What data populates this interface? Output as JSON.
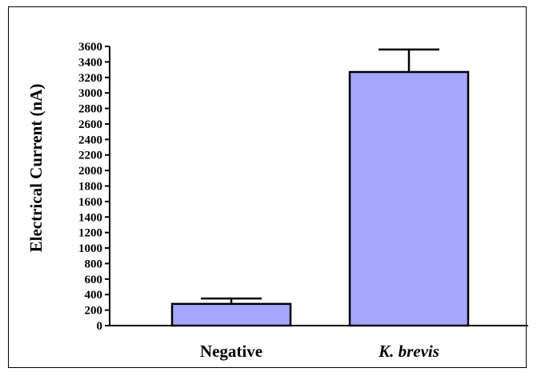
{
  "chart_data": {
    "type": "bar",
    "categories": [
      "Negative",
      "K. brevis"
    ],
    "category_styles": [
      "normal",
      "italic"
    ],
    "values": [
      280,
      3270
    ],
    "error_upper": [
      350,
      3560
    ],
    "ylabel": "Electrical Current (nA)",
    "xlabel": "",
    "title": "",
    "ylim": [
      0,
      3600
    ],
    "yticks": [
      0,
      200,
      400,
      600,
      800,
      1000,
      1200,
      1400,
      1600,
      1800,
      2000,
      2200,
      2400,
      2600,
      2800,
      3000,
      3200,
      3400,
      3600
    ],
    "grid": false,
    "legend": "none",
    "colors": {
      "bar_fill": "#a6a6ff",
      "bar_stroke": "#000000"
    }
  }
}
